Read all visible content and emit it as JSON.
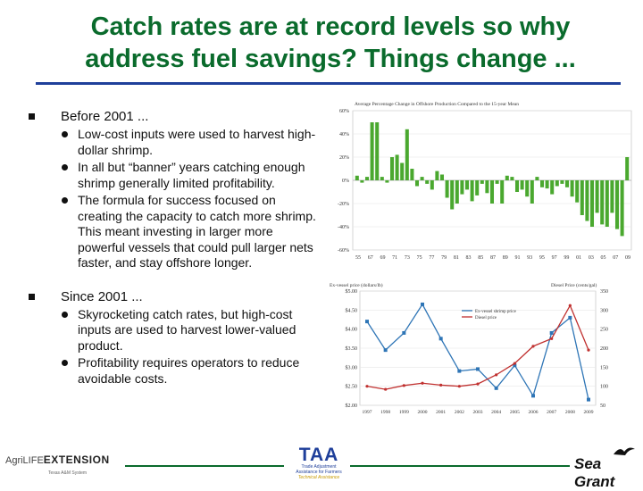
{
  "slide": {
    "title_line1": "Catch rates are at record levels so why",
    "title_line2": "address fuel savings? Things change ..."
  },
  "bullets": [
    {
      "text": "Before 2001 ...",
      "sub": [
        "Low-cost inputs were used to harvest  high-dollar shrimp.",
        "In all but “banner” years catching enough shrimp generally limited profitability.",
        "The formula for success focused on creating the capacity to catch more shrimp. This meant investing in larger more powerful vessels that could pull larger nets faster, and stay offshore longer."
      ]
    },
    {
      "text": "Since 2001 ...",
      "sub": [
        "Skyrocketing catch rates, but high-cost inputs are used to harvest lower-valued product.",
        "Profitability requires operators to reduce avoidable costs."
      ]
    }
  ],
  "chart_data": [
    {
      "type": "bar",
      "title": "Average Percentage Change in Offshore Production Compared to the 15-year Mean",
      "ylim": [
        -60,
        60
      ],
      "yticks": [
        "60%",
        "40%",
        "20%",
        "0%",
        "-20%",
        "-40%",
        "-60%"
      ],
      "xticks": [
        "55",
        "67",
        "69",
        "71",
        "73",
        "75",
        "77",
        "79",
        "81",
        "83",
        "85",
        "87",
        "89",
        "91",
        "93",
        "95",
        "97",
        "99",
        "01",
        "03",
        "05",
        "07",
        "09"
      ],
      "categories": [
        "1955",
        "1956",
        "1957",
        "1958",
        "1959",
        "1960",
        "1961",
        "1962",
        "1963",
        "1964",
        "1965",
        "1966",
        "1967",
        "1968",
        "1969",
        "1970",
        "1971",
        "1972",
        "1973",
        "1974",
        "1975",
        "1976",
        "1977",
        "1978",
        "1979",
        "1980",
        "1981",
        "1982",
        "1983",
        "1984",
        "1985",
        "1986",
        "1987",
        "1988",
        "1989",
        "1990",
        "1991",
        "1992",
        "1993",
        "1994",
        "1995",
        "1996",
        "1997",
        "1998",
        "1999",
        "2000",
        "2001",
        "2002",
        "2003",
        "2004",
        "2005",
        "2006",
        "2007",
        "2008",
        "2009"
      ],
      "values": [
        4,
        -2,
        3,
        50,
        50,
        3,
        -2,
        20,
        22,
        15,
        44,
        10,
        -5,
        3,
        -3,
        -8,
        8,
        5,
        -15,
        -25,
        -20,
        -12,
        -8,
        -18,
        -13,
        -3,
        -11,
        -20,
        -3,
        -20,
        4,
        3,
        -10,
        -8,
        -14,
        -20,
        3,
        -6,
        -7,
        -12,
        -5,
        -3,
        -6,
        -14,
        -19,
        -30,
        -35,
        -40,
        -28,
        -38,
        -40,
        -28,
        -42,
        -48,
        20
      ],
      "bar_color": "#4aa82f"
    },
    {
      "type": "line",
      "ylabel_left": "Ex-vessel price (dollars/lb)",
      "ylabel_right": "Diesel Price (cents/gal)",
      "x": [
        "1997",
        "1998",
        "1999",
        "2000",
        "2001",
        "2002",
        "2003",
        "2004",
        "2005",
        "2006",
        "2007",
        "2008",
        "2009"
      ],
      "left_ticks": [
        "$5.00",
        "$4.50",
        "$4.00",
        "$3.50",
        "$3.00",
        "$2.50",
        "$2.00"
      ],
      "right_ticks": [
        "350",
        "300",
        "250",
        "200",
        "150",
        "100",
        "50"
      ],
      "left_range": [
        2.0,
        5.0
      ],
      "right_range": [
        50,
        350
      ],
      "series": [
        {
          "name": "Ex-vessel shrimp price",
          "axis": "left",
          "color": "#2e75b6",
          "values": [
            4.2,
            3.45,
            3.9,
            4.65,
            3.75,
            2.9,
            2.95,
            2.45,
            3.05,
            2.25,
            3.9,
            4.3,
            2.15
          ]
        },
        {
          "name": "Diesel price",
          "axis": "right",
          "color": "#c0302f",
          "values": [
            100,
            92,
            102,
            108,
            103,
            100,
            106,
            130,
            160,
            205,
            225,
            312,
            195
          ]
        }
      ]
    }
  ],
  "footer": {
    "agrilife": "AgriLIFE",
    "extension": "EXTENSION",
    "agrilife_sub": "Texas A&M System",
    "taa": "TAA",
    "taa_sub1": "Trade Adjustment",
    "taa_sub2": "Assistance for Farmers",
    "taa_tag": "Technical Assistance",
    "seagrant": "Sea Grant"
  }
}
